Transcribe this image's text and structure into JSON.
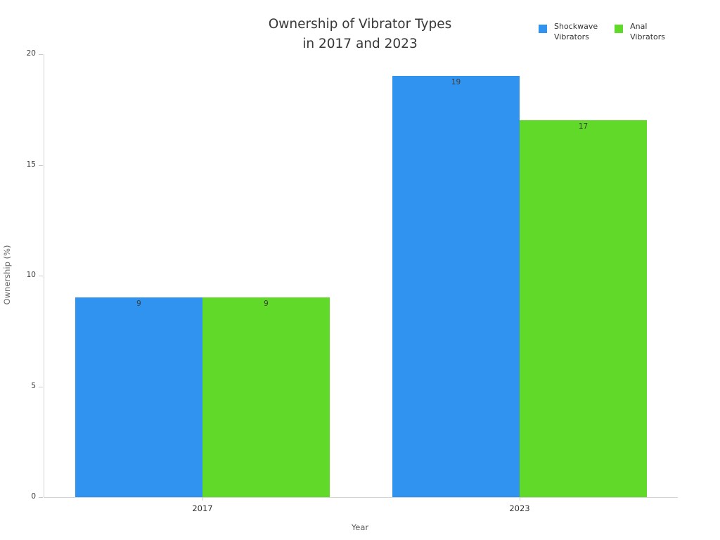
{
  "title": {
    "line1": "Ownership of Vibrator Types",
    "line2": "in 2017 and 2023"
  },
  "legend": [
    {
      "label_line1": "Shockwave",
      "label_line2": "Vibrators",
      "color": "#3093f0"
    },
    {
      "label_line1": "Anal",
      "label_line2": "Vibrators",
      "color": "#61d928"
    }
  ],
  "chart_data": {
    "type": "bar",
    "title": "Ownership of Vibrator Types in 2017 and 2023",
    "categories": [
      "2017",
      "2023"
    ],
    "series": [
      {
        "name": "Shockwave Vibrators",
        "color": "#3093f0",
        "values": [
          9,
          19
        ]
      },
      {
        "name": "Anal Vibrators",
        "color": "#61d928",
        "values": [
          9,
          17
        ]
      }
    ],
    "xlabel": "Year",
    "ylabel": "Ownership (%)",
    "ylim": [
      0,
      20
    ],
    "yticks": [
      0,
      5,
      10,
      15,
      20
    ],
    "grid": false,
    "legend_position": "top-right",
    "bar_labels": true
  }
}
